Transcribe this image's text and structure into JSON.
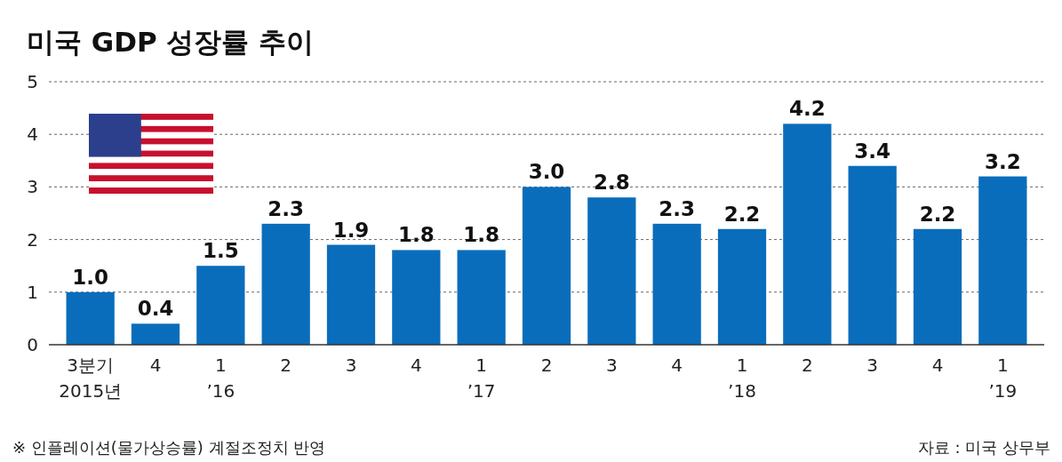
{
  "chart_data": {
    "type": "bar",
    "title": "미국 GDP 성장률 추이",
    "categories": [
      "3분기\n2015년",
      "4",
      "1\n’16",
      "2",
      "3",
      "4",
      "1\n’17",
      "2",
      "3",
      "4",
      "1\n’18",
      "2",
      "3",
      "4",
      "1\n’19"
    ],
    "values": [
      1.0,
      0.4,
      1.5,
      2.3,
      1.9,
      1.8,
      1.8,
      3.0,
      2.8,
      2.3,
      2.2,
      4.2,
      3.4,
      2.2,
      3.2
    ],
    "color": "#0a6dbb",
    "ylim": [
      0,
      5
    ],
    "yticks": [
      0,
      1,
      2,
      3,
      4,
      5
    ],
    "grid": "y",
    "value_labels": [
      "1.0",
      "0.4",
      "1.5",
      "2.3",
      "1.9",
      "1.8",
      "1.8",
      "3.0",
      "2.8",
      "2.3",
      "2.2",
      "4.2",
      "3.4",
      "2.2",
      "3.2"
    ],
    "annotations": [
      "※ 인플레이션(물가상승률) 계절조정치 반영",
      "자료 : 미국 상무부"
    ]
  }
}
